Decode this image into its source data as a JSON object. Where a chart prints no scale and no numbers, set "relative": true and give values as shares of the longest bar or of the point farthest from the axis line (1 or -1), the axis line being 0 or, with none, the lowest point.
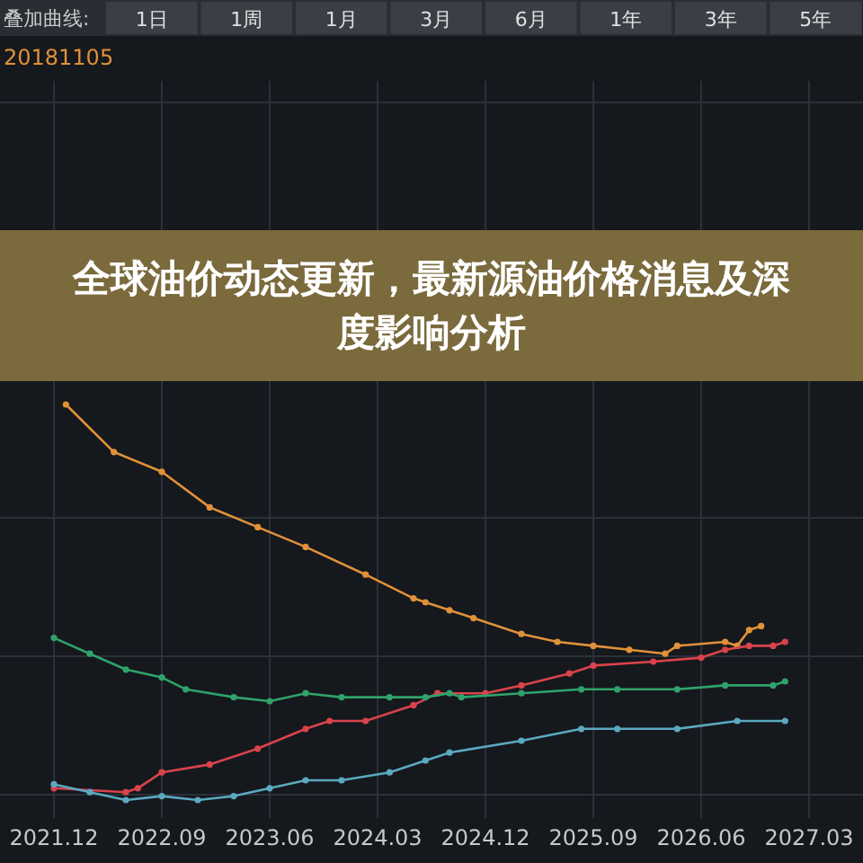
{
  "chart_data": {
    "type": "line",
    "title": "全球油价动态更新，最新源油价格消息及深度影响分析",
    "relative": true,
    "marker": "circle",
    "grid": true,
    "legend": "top left",
    "tick_labels": "x",
    "annotations": [
      "叠加曲线:",
      "1日",
      "1周",
      "1月",
      "3月",
      "6月",
      "1年",
      "3年",
      "5年"
    ],
    "xlim": [
      "2021-12",
      "2027-03"
    ],
    "xticks": [
      {
        "value": "2021-12",
        "label": "2021.12"
      },
      {
        "value": "2022-09",
        "label": "2022.09"
      },
      {
        "value": "2023-06",
        "label": "2023.06"
      },
      {
        "value": "2024-03",
        "label": "2024.03"
      },
      {
        "value": "2024-12",
        "label": "2024.12"
      },
      {
        "value": "2025-09",
        "label": "2025.09"
      },
      {
        "value": "2026-06",
        "label": "2026.06"
      },
      {
        "value": "2027-03",
        "label": "2027.03"
      }
    ],
    "series": [
      {
        "name": "20181105",
        "color": "#e0913a",
        "x": [
          "2022-01",
          "2022-05",
          "2022-09",
          "2023-01",
          "2023-05",
          "2023-09",
          "2024-02",
          "2024-06",
          "2024-07",
          "2024-09",
          "2024-11",
          "2025-03",
          "2025-06",
          "2025-09",
          "2025-12",
          "2026-03",
          "2026-04",
          "2026-08",
          "2026-09",
          "2026-10",
          "2026-11"
        ],
        "values": [
          1.0,
          0.88,
          0.83,
          0.74,
          0.69,
          0.64,
          0.57,
          0.51,
          0.5,
          0.48,
          0.46,
          0.42,
          0.4,
          0.39,
          0.38,
          0.37,
          0.39,
          0.4,
          0.39,
          0.43,
          0.44
        ]
      },
      {
        "color": "#d9434b",
        "x": [
          "2021-12",
          "2022-06",
          "2022-07",
          "2022-09",
          "2023-01",
          "2023-05",
          "2023-09",
          "2023-11",
          "2024-02",
          "2024-06",
          "2024-08",
          "2024-12",
          "2025-03",
          "2025-07",
          "2025-09",
          "2026-02",
          "2026-06",
          "2026-08",
          "2026-10",
          "2026-12",
          "2027-01"
        ],
        "values": [
          0.03,
          0.02,
          0.03,
          0.07,
          0.09,
          0.13,
          0.18,
          0.2,
          0.2,
          0.24,
          0.27,
          0.27,
          0.29,
          0.32,
          0.34,
          0.35,
          0.36,
          0.38,
          0.39,
          0.39,
          0.4
        ]
      },
      {
        "color": "#2fa36b",
        "x": [
          "2021-12",
          "2022-03",
          "2022-06",
          "2022-09",
          "2022-11",
          "2023-03",
          "2023-06",
          "2023-09",
          "2023-12",
          "2024-04",
          "2024-07",
          "2024-09",
          "2024-10",
          "2025-03",
          "2025-08",
          "2025-11",
          "2026-04",
          "2026-08",
          "2026-12",
          "2027-01"
        ],
        "values": [
          0.41,
          0.37,
          0.33,
          0.31,
          0.28,
          0.26,
          0.25,
          0.27,
          0.26,
          0.26,
          0.26,
          0.27,
          0.26,
          0.27,
          0.28,
          0.28,
          0.28,
          0.29,
          0.29,
          0.3
        ]
      },
      {
        "color": "#5aa9c0",
        "x": [
          "2021-12",
          "2022-03",
          "2022-06",
          "2022-09",
          "2022-12",
          "2023-03",
          "2023-06",
          "2023-09",
          "2023-12",
          "2024-04",
          "2024-07",
          "2024-09",
          "2025-03",
          "2025-08",
          "2025-11",
          "2026-04",
          "2026-09",
          "2027-01"
        ],
        "values": [
          0.04,
          0.02,
          0.0,
          0.01,
          0.0,
          0.01,
          0.03,
          0.05,
          0.05,
          0.07,
          0.1,
          0.12,
          0.15,
          0.18,
          0.18,
          0.18,
          0.2,
          0.2
        ]
      }
    ]
  }
}
